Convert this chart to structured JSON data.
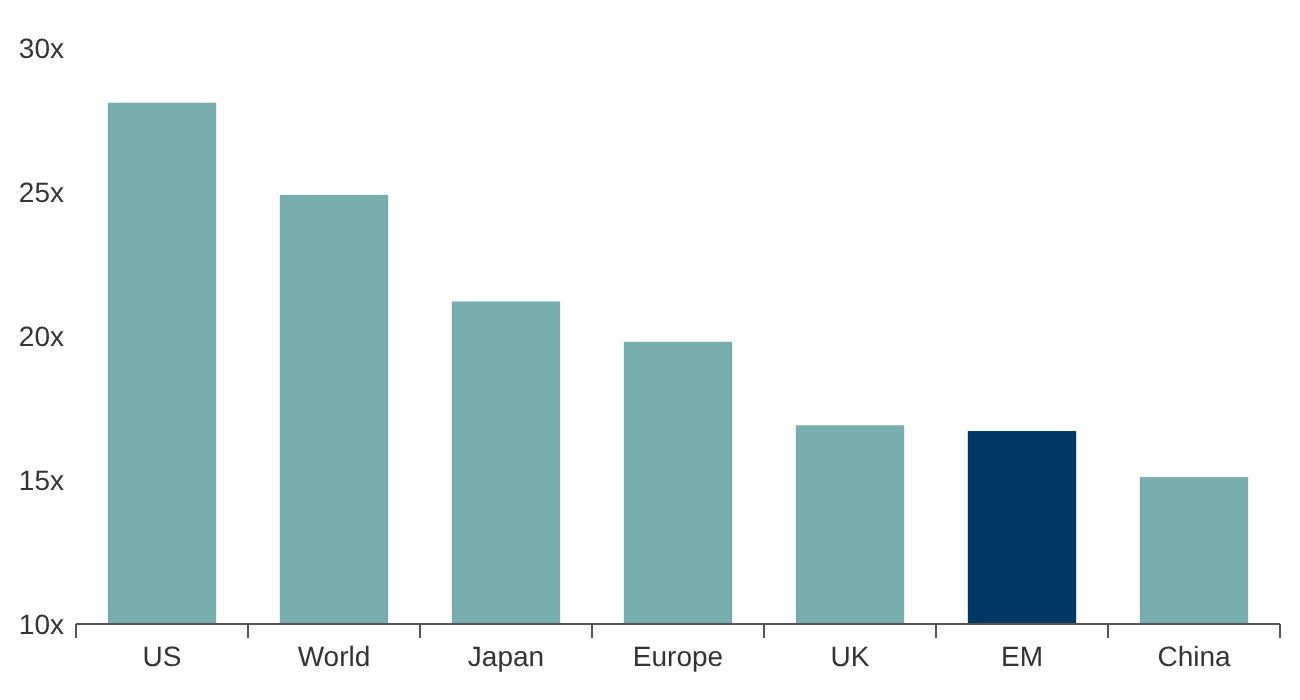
{
  "chart_data": {
    "type": "bar",
    "categories": [
      "US",
      "World",
      "Japan",
      "Europe",
      "UK",
      "EM",
      "China"
    ],
    "values": [
      28.1,
      24.9,
      21.2,
      19.8,
      16.9,
      16.7,
      15.1
    ],
    "colors": [
      "#79aeb0",
      "#79aeb0",
      "#79aeb0",
      "#79aeb0",
      "#79aeb0",
      "#003865",
      "#79aeb0"
    ],
    "ylim": [
      10,
      30
    ],
    "yticks": [
      {
        "value": 10,
        "label": "10x"
      },
      {
        "value": 15,
        "label": "15x"
      },
      {
        "value": 20,
        "label": "20x"
      },
      {
        "value": 25,
        "label": "25x"
      },
      {
        "value": 30,
        "label": "30x"
      }
    ],
    "grid": false
  }
}
